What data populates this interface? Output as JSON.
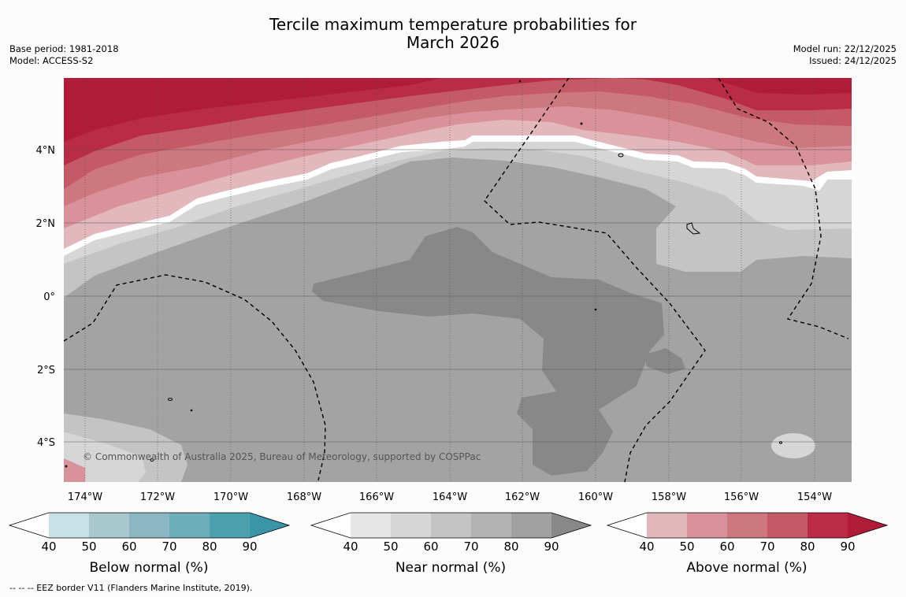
{
  "title_line1": "Tercile maximum temperature probabilities for",
  "title_line2": "March 2026",
  "base_period": "Base period: 1981-2018",
  "model": "Model: ACCESS-S2",
  "model_run": "Model run: 22/12/2025",
  "issued": "Issued: 24/12/2025",
  "copyright": "© Commonwealth of Australia 2025, Bureau of Meteorology, supported by COSPPac",
  "footnote": "--  --  -- EEZ border V11 (Flanders Marine Institute, 2019).",
  "lon_labels": [
    "174°W",
    "172°W",
    "170°W",
    "168°W",
    "166°W",
    "164°W",
    "162°W",
    "160°W",
    "158°W",
    "156°W",
    "154°W"
  ],
  "lat_labels": [
    "4°N",
    "2°N",
    "0°",
    "2°S",
    "4°S"
  ],
  "colorbars": [
    {
      "label": "Below normal (%)",
      "ticks": [
        "40",
        "50",
        "60",
        "70",
        "80",
        "90"
      ],
      "colors": [
        "#ffffff",
        "#c8e1e7",
        "#a8c8cd",
        "#8ab7c3",
        "#6daebb",
        "#4ba0ae",
        "#3a95a8"
      ]
    },
    {
      "label": "Near normal (%)",
      "ticks": [
        "40",
        "50",
        "60",
        "70",
        "80",
        "90"
      ],
      "colors": [
        "#ffffff",
        "#e6e6e6",
        "#d6d6d6",
        "#c4c4c4",
        "#b3b3b3",
        "#a1a1a1",
        "#888888"
      ]
    },
    {
      "label": "Above normal (%)",
      "ticks": [
        "40",
        "50",
        "60",
        "70",
        "80",
        "90"
      ],
      "colors": [
        "#ffffff",
        "#e2b8bd",
        "#d9919a",
        "#cd777f",
        "#c55a67",
        "#ba2b45",
        "#b01c38"
      ]
    }
  ]
}
